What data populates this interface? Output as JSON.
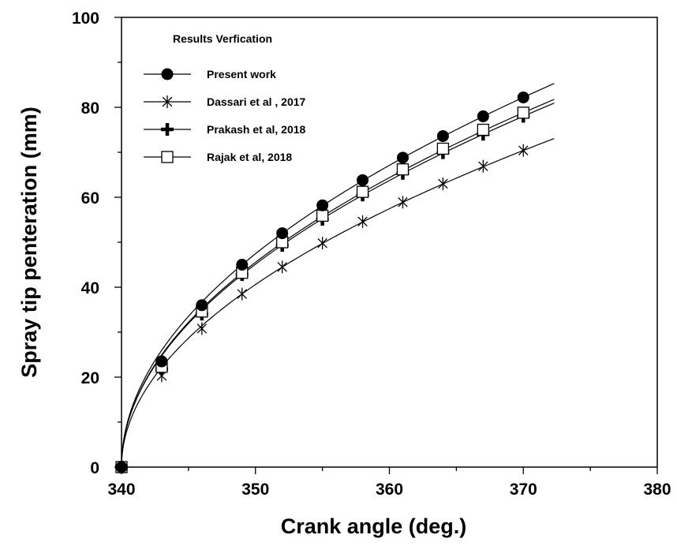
{
  "chart_data": {
    "type": "line",
    "title": "",
    "xlabel": "Crank angle (deg.)",
    "ylabel": "Spray tip penteration (mm)",
    "xlim": [
      340,
      380
    ],
    "ylim": [
      0,
      100
    ],
    "xticks": [
      340,
      350,
      360,
      370,
      380
    ],
    "yticks": [
      0,
      20,
      40,
      60,
      80,
      100
    ],
    "grid": false,
    "legend_title": "Results Verfication",
    "legend_position": "top-left",
    "series": [
      {
        "name": "Present work",
        "marker": "filled-circle",
        "x": [
          340,
          343,
          346,
          349,
          352,
          355,
          358,
          361,
          364,
          367,
          370
        ],
        "y": [
          0,
          23.5,
          36,
          45,
          52,
          58.2,
          63.8,
          68.8,
          73.6,
          78,
          82.2
        ],
        "fit_end": [
          372.3,
          84.8
        ]
      },
      {
        "name": "Dassari et al , 2017",
        "marker": "asterisk",
        "x": [
          340,
          343,
          346,
          349,
          352,
          355,
          358,
          361,
          364,
          367,
          370
        ],
        "y": [
          0,
          20.3,
          30.8,
          38.5,
          44.5,
          49.8,
          54.6,
          58.9,
          63,
          66.9,
          70.4
        ],
        "fit_end": [
          372.3,
          73.2
        ]
      },
      {
        "name": "Prakash et al, 2018",
        "marker": "plus",
        "x": [
          340,
          343,
          346,
          349,
          352,
          355,
          358,
          361,
          364,
          367,
          370
        ],
        "y": [
          0,
          21.8,
          34,
          42.8,
          49.3,
          55.1,
          60.5,
          65.3,
          69.9,
          74,
          78
        ],
        "fit_end": [
          372.3,
          80.8
        ]
      },
      {
        "name": "Rajak et al, 2018",
        "marker": "open-square",
        "x": [
          340,
          343,
          346,
          349,
          352,
          355,
          358,
          361,
          364,
          367,
          370
        ],
        "y": [
          0,
          22.3,
          34.6,
          43.2,
          50,
          55.9,
          61.2,
          66.2,
          70.8,
          75,
          78.8
        ],
        "fit_end": [
          372.3,
          81.7
        ]
      }
    ]
  }
}
